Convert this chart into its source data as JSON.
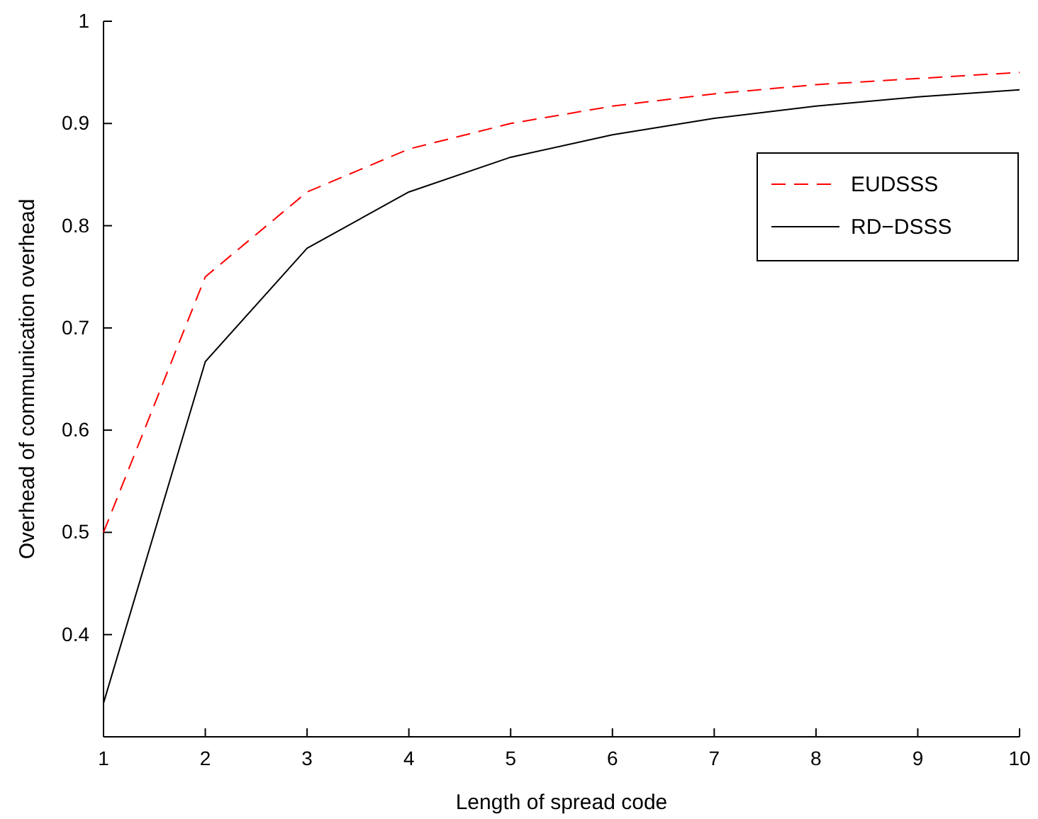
{
  "chart_data": {
    "type": "line",
    "xlabel": "Length of spread code",
    "ylabel": "Overhead of communication overhead",
    "x": [
      1,
      2,
      3,
      4,
      5,
      6,
      7,
      8,
      9,
      10
    ],
    "xlim": [
      1,
      10
    ],
    "xticks": [
      1,
      2,
      3,
      4,
      5,
      6,
      7,
      8,
      9,
      10
    ],
    "ylim": [
      0.3,
      1
    ],
    "yticks": [
      0.4,
      0.5,
      0.6,
      0.7,
      0.8,
      0.9,
      1
    ],
    "legend": "top right",
    "series": [
      {
        "name": "EUDSSS",
        "color": "#ff0000",
        "line_style": "dashed",
        "values": [
          0.5,
          0.75,
          0.833,
          0.875,
          0.9,
          0.917,
          0.929,
          0.938,
          0.944,
          0.95
        ]
      },
      {
        "name": "RD−DSSS",
        "color": "#000000",
        "line_style": "solid",
        "values": [
          0.333,
          0.667,
          0.778,
          0.833,
          0.867,
          0.889,
          0.905,
          0.917,
          0.926,
          0.933
        ]
      }
    ]
  }
}
